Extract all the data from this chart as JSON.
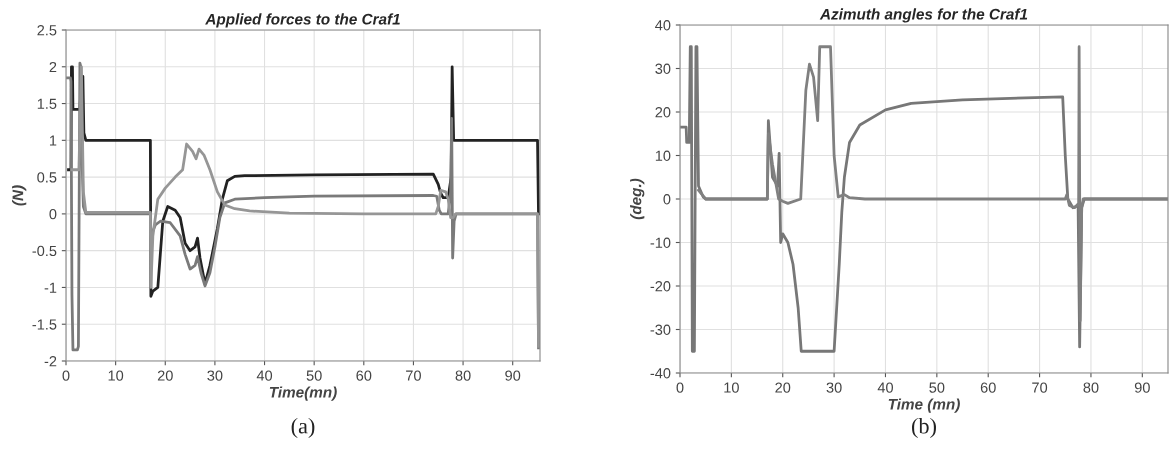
{
  "chart_data": [
    {
      "type": "line",
      "title": "Applied forces to the Craf1",
      "xlabel": "Time(mn)",
      "ylabel": "(N)",
      "xlim": [
        0,
        95.5
      ],
      "ylim": [
        -2,
        2.5
      ],
      "xticks": [
        0,
        10,
        20,
        30,
        40,
        50,
        60,
        70,
        80,
        90
      ],
      "yticks": [
        -2,
        -1.5,
        -1,
        -0.5,
        0,
        0.5,
        1,
        1.5,
        2,
        2.5
      ],
      "grid": true,
      "marker": "none",
      "line_style": "solid",
      "annotations": [
        "(a)"
      ],
      "series": [
        {
          "color": "#222222",
          "x": [
            0.5,
            1.0,
            1.1,
            1.3,
            1.4,
            2.8,
            3.0,
            3.2,
            3.4,
            3.6,
            4,
            17,
            17.1,
            17.5,
            18.5,
            19.5,
            20.5,
            22,
            23,
            24,
            25,
            26,
            26.5,
            27,
            28,
            29,
            30.5,
            31.5,
            32.5,
            34,
            36,
            50,
            74,
            75,
            75.5,
            76,
            77,
            77.6,
            77.8,
            78.1,
            78.5,
            95,
            95.2
          ],
          "values": [
            0.6,
            0.6,
            2.0,
            2.0,
            1.42,
            1.42,
            1.7,
            1.42,
            1.87,
            1.1,
            1.0,
            1.0,
            -1.12,
            -1.05,
            -1.0,
            -0.1,
            0.1,
            0.05,
            -0.05,
            -0.4,
            -0.5,
            -0.45,
            -0.33,
            -0.6,
            -0.95,
            -0.7,
            -0.2,
            0.2,
            0.45,
            0.51,
            0.52,
            0.53,
            0.54,
            0.4,
            0.28,
            0.22,
            0.22,
            0.5,
            2.0,
            1.0,
            1.0,
            1.0,
            0.0
          ]
        },
        {
          "color": "#7a7a7a",
          "x": [
            0.3,
            0.9,
            1.0,
            1.2,
            1.4,
            2.3,
            2.5,
            2.8,
            3.0,
            3.2,
            3.5,
            4,
            17,
            17.1,
            18,
            19,
            21,
            23,
            24,
            25,
            26,
            26.5,
            27.2,
            28,
            29,
            30,
            31,
            32,
            34,
            40,
            50,
            74,
            74.7,
            75.2,
            75.6,
            77,
            77.5,
            77.7,
            77.9,
            78.2,
            78.6,
            95,
            95.2
          ],
          "values": [
            1.85,
            1.85,
            1.8,
            -1.1,
            -1.85,
            -1.85,
            -1.8,
            2.05,
            2.0,
            0.8,
            0.1,
            0.0,
            0.0,
            -0.3,
            -0.15,
            -0.1,
            -0.12,
            -0.3,
            -0.55,
            -0.75,
            -0.7,
            -0.58,
            -0.8,
            -0.98,
            -0.8,
            -0.45,
            -0.05,
            0.15,
            0.2,
            0.22,
            0.24,
            0.25,
            0.24,
            0.05,
            0.0,
            0.0,
            0.3,
            1.3,
            -0.6,
            -0.1,
            0.0,
            0.0,
            -1.82
          ]
        },
        {
          "color": "#969696",
          "x": [
            1.2,
            2.6,
            3.1,
            3.5,
            4,
            17,
            17.1,
            17.5,
            18.5,
            20,
            22,
            23.5,
            24.3,
            25.5,
            26.2,
            26.8,
            27.8,
            29,
            30.5,
            32,
            34,
            37,
            45,
            60,
            74.5,
            75,
            75.5,
            76.5,
            77,
            77.5,
            78,
            78.5,
            95,
            95.2
          ],
          "values": [
            0.6,
            0.6,
            2.0,
            0.3,
            0.02,
            0.02,
            -1.0,
            -0.3,
            0.2,
            0.35,
            0.5,
            0.6,
            0.95,
            0.85,
            0.75,
            0.88,
            0.8,
            0.6,
            0.3,
            0.12,
            0.07,
            0.04,
            0.01,
            0.0,
            0.0,
            0.1,
            0.32,
            0.3,
            0.2,
            -0.05,
            -0.05,
            0.0,
            0.0,
            -1.8
          ]
        }
      ]
    },
    {
      "type": "line",
      "title": "Azimuth angles for the Craf1",
      "xlabel": "Time (mn)",
      "ylabel": "(deg.)",
      "xlim": [
        0,
        95
      ],
      "ylim": [
        -40,
        40
      ],
      "xticks": [
        0,
        10,
        20,
        30,
        40,
        50,
        60,
        70,
        80,
        90
      ],
      "yticks": [
        -40,
        -30,
        -20,
        -10,
        0,
        10,
        20,
        30,
        40
      ],
      "grid": true,
      "marker": "none",
      "line_style": "solid",
      "annotations": [
        "(b)"
      ],
      "series": [
        {
          "color": "#777777",
          "x": [
            0.3,
            1.2,
            1.3,
            1.8,
            2.0,
            2.2,
            2.4,
            2.8,
            3.1,
            3.3,
            3.6,
            4.5,
            5,
            17,
            17.2,
            18,
            19,
            19.3,
            19.6,
            20,
            21,
            22,
            23,
            23.6,
            30,
            31,
            31.5,
            32,
            33,
            35,
            40,
            45,
            55,
            74.5,
            75,
            75.5,
            76.5,
            77.5,
            77.8,
            78.2,
            78.7,
            95
          ],
          "values": [
            16.5,
            16.5,
            13,
            13,
            35,
            35,
            -35,
            -35,
            35,
            35,
            3,
            0.5,
            0,
            0,
            18,
            5,
            3,
            10.5,
            -10,
            -8,
            -10,
            -15,
            -25,
            -35,
            -35,
            -15,
            -3,
            5,
            13,
            17,
            20.5,
            22,
            22.8,
            23.5,
            10,
            0,
            -2,
            -1.5,
            -34,
            -2,
            0,
            0
          ]
        },
        {
          "color": "#808080",
          "x": [
            3.6,
            5,
            17,
            17.2,
            18,
            19.2,
            20,
            21,
            23.5,
            24.5,
            25.2,
            26,
            26.8,
            27.2,
            29.3,
            30,
            30.8,
            32,
            33,
            36,
            75,
            75.3,
            75.8,
            76.8,
            77.6,
            77.7,
            77.9,
            78.2,
            78.5,
            95
          ],
          "values": [
            2,
            0,
            0,
            15,
            8,
            0,
            -0.5,
            -1,
            0,
            25,
            31,
            28,
            18,
            35,
            35,
            10,
            0.5,
            1,
            0.3,
            0,
            0,
            1,
            -1.5,
            -2,
            -1,
            35,
            -28,
            -2,
            0,
            0
          ]
        }
      ]
    }
  ]
}
